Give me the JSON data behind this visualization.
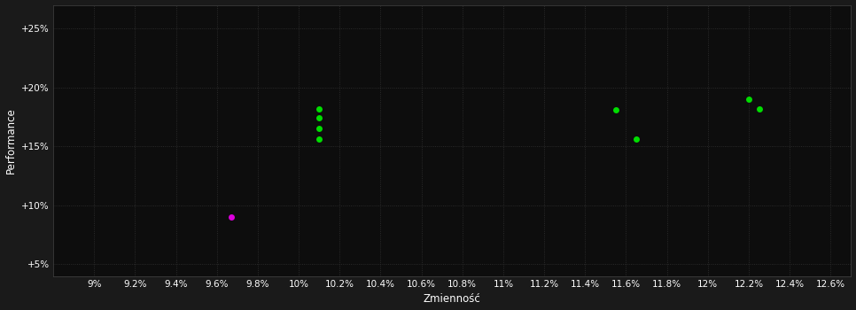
{
  "background_color": "#1a1a1a",
  "plot_bg_color": "#0d0d0d",
  "grid_color": "#333333",
  "text_color": "#ffffff",
  "xlabel": "Zmienność",
  "ylabel": "Performance",
  "xlim": [
    0.088,
    0.127
  ],
  "ylim": [
    0.04,
    0.27
  ],
  "xticks": [
    0.09,
    0.092,
    0.094,
    0.096,
    0.098,
    0.1,
    0.102,
    0.104,
    0.106,
    0.108,
    0.11,
    0.112,
    0.114,
    0.116,
    0.118,
    0.12,
    0.122,
    0.124,
    0.126
  ],
  "yticks": [
    0.05,
    0.1,
    0.15,
    0.2,
    0.25
  ],
  "ytick_labels": [
    "+5%",
    "+10%",
    "+15%",
    "+20%",
    "+25%"
  ],
  "xtick_labels": [
    "9%",
    "9.2%",
    "9.4%",
    "9.6%",
    "9.8%",
    "10%",
    "10.2%",
    "10.4%",
    "10.6%",
    "10.8%",
    "11%",
    "11.2%",
    "11.4%",
    "11.6%",
    "11.8%",
    "12%",
    "12.2%",
    "12.4%",
    "12.6%"
  ],
  "green_color": "#00dd00",
  "magenta_color": "#dd00dd",
  "points_green": [
    [
      0.101,
      0.182
    ],
    [
      0.101,
      0.174
    ],
    [
      0.101,
      0.165
    ],
    [
      0.101,
      0.156
    ],
    [
      0.1155,
      0.181
    ],
    [
      0.1165,
      0.156
    ],
    [
      0.122,
      0.19
    ],
    [
      0.1225,
      0.182
    ]
  ],
  "points_magenta": [
    [
      0.0967,
      0.09
    ]
  ],
  "marker_size": 25,
  "font_size_ticks": 7.5,
  "font_size_labels": 8.5
}
